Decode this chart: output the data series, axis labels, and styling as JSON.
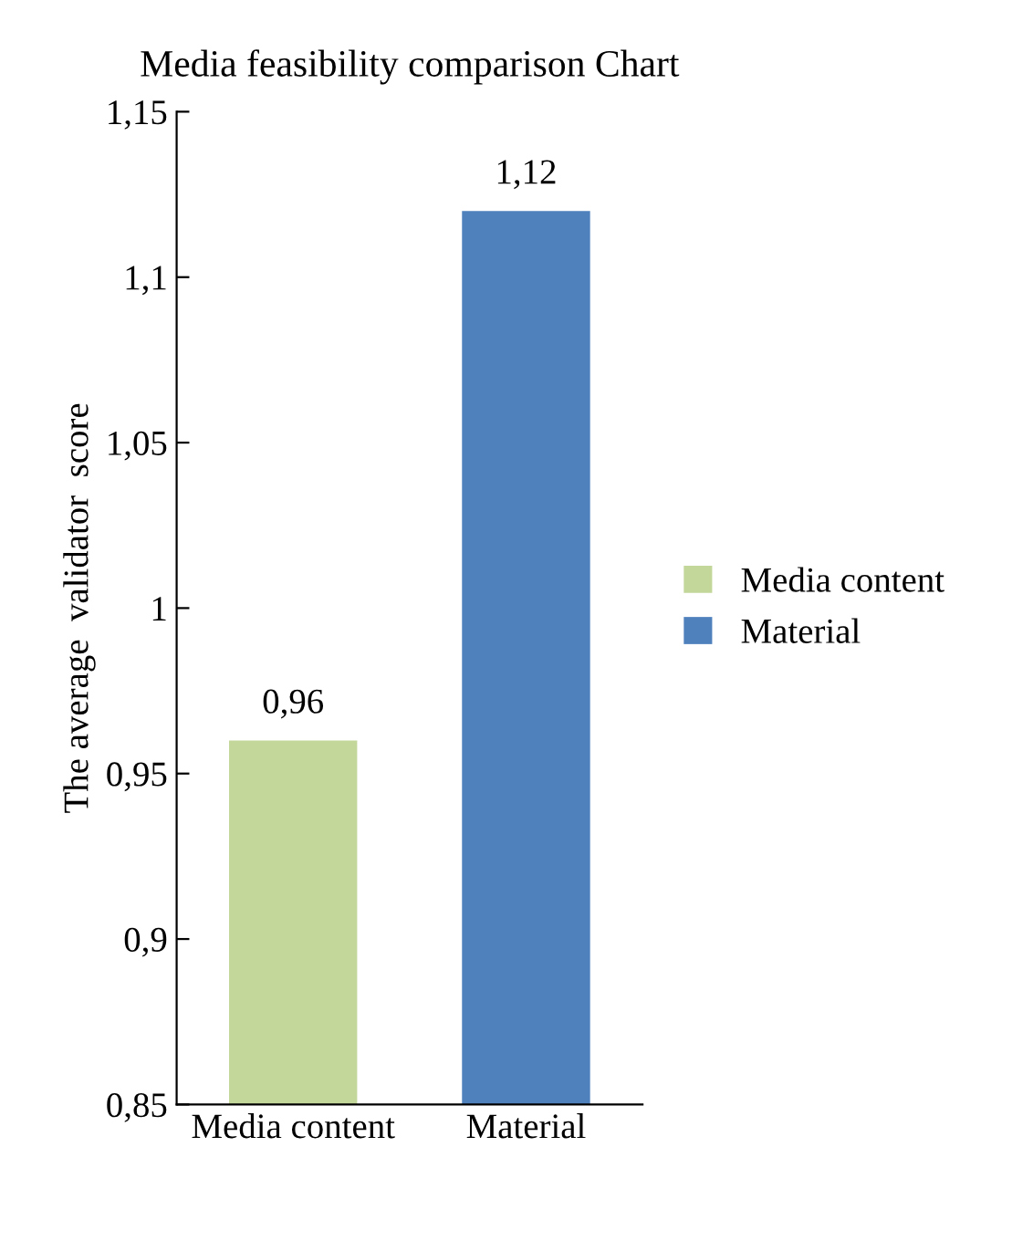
{
  "chart_data": {
    "type": "bar",
    "title": "Media feasibility comparison Chart",
    "ylabel": "The average  validator  score",
    "categories": [
      "Media content",
      "Material"
    ],
    "series": [
      {
        "name": "Media content",
        "color": "#c4d79b",
        "values": [
          0.96,
          null
        ],
        "value_labels": [
          "0,96",
          null
        ]
      },
      {
        "name": "Material",
        "color": "#4f81bd",
        "values": [
          null,
          1.12
        ],
        "value_labels": [
          null,
          "1,12"
        ]
      }
    ],
    "ylim": [
      0.85,
      1.15
    ],
    "yticks": [
      {
        "value": 0.85,
        "label": "0,85"
      },
      {
        "value": 0.9,
        "label": "0,9"
      },
      {
        "value": 0.95,
        "label": "0,95"
      },
      {
        "value": 1,
        "label": "1"
      },
      {
        "value": 1.05,
        "label": "1,05"
      },
      {
        "value": 1.1,
        "label": "1,1"
      },
      {
        "value": 1.15,
        "label": "1,15"
      }
    ],
    "grid": false,
    "legend": "right"
  }
}
